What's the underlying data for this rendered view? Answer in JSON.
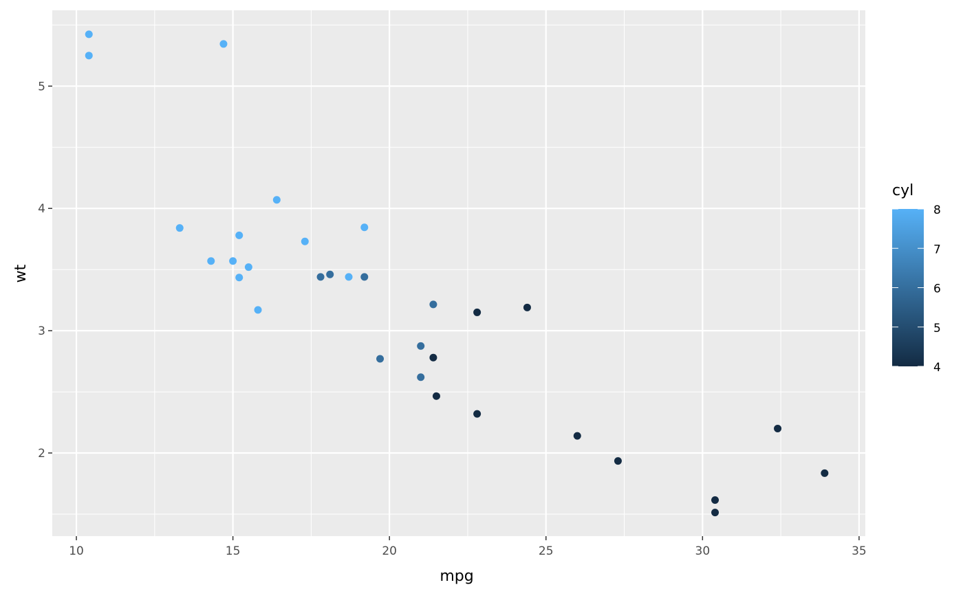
{
  "chart_data": {
    "type": "scatter",
    "title": "",
    "xlabel": "mpg",
    "ylabel": "wt",
    "xlim": [
      9.23,
      35.2
    ],
    "ylim": [
      1.32,
      5.62
    ],
    "xticks": [
      10,
      15,
      20,
      25,
      30,
      35
    ],
    "yticks": [
      2,
      3,
      4,
      5
    ],
    "grid": true,
    "legend": {
      "title": "cyl",
      "placement": "right",
      "type": "colorbar",
      "range": [
        4,
        8
      ],
      "ticks": [
        4,
        5,
        6,
        7,
        8
      ],
      "low_color": "#132B43",
      "high_color": "#56B1F7"
    },
    "points": [
      {
        "mpg": 21.0,
        "wt": 2.62,
        "cyl": 6
      },
      {
        "mpg": 21.0,
        "wt": 2.875,
        "cyl": 6
      },
      {
        "mpg": 22.8,
        "wt": 2.32,
        "cyl": 4
      },
      {
        "mpg": 21.4,
        "wt": 3.215,
        "cyl": 6
      },
      {
        "mpg": 18.7,
        "wt": 3.44,
        "cyl": 8
      },
      {
        "mpg": 18.1,
        "wt": 3.46,
        "cyl": 6
      },
      {
        "mpg": 14.3,
        "wt": 3.57,
        "cyl": 8
      },
      {
        "mpg": 24.4,
        "wt": 3.19,
        "cyl": 4
      },
      {
        "mpg": 22.8,
        "wt": 3.15,
        "cyl": 4
      },
      {
        "mpg": 19.2,
        "wt": 3.44,
        "cyl": 6
      },
      {
        "mpg": 17.8,
        "wt": 3.44,
        "cyl": 6
      },
      {
        "mpg": 16.4,
        "wt": 4.07,
        "cyl": 8
      },
      {
        "mpg": 17.3,
        "wt": 3.73,
        "cyl": 8
      },
      {
        "mpg": 15.2,
        "wt": 3.78,
        "cyl": 8
      },
      {
        "mpg": 10.4,
        "wt": 5.25,
        "cyl": 8
      },
      {
        "mpg": 10.4,
        "wt": 5.424,
        "cyl": 8
      },
      {
        "mpg": 14.7,
        "wt": 5.345,
        "cyl": 8
      },
      {
        "mpg": 32.4,
        "wt": 2.2,
        "cyl": 4
      },
      {
        "mpg": 30.4,
        "wt": 1.615,
        "cyl": 4
      },
      {
        "mpg": 33.9,
        "wt": 1.835,
        "cyl": 4
      },
      {
        "mpg": 21.5,
        "wt": 2.465,
        "cyl": 4
      },
      {
        "mpg": 15.5,
        "wt": 3.52,
        "cyl": 8
      },
      {
        "mpg": 15.2,
        "wt": 3.435,
        "cyl": 8
      },
      {
        "mpg": 13.3,
        "wt": 3.84,
        "cyl": 8
      },
      {
        "mpg": 19.2,
        "wt": 3.845,
        "cyl": 8
      },
      {
        "mpg": 27.3,
        "wt": 1.935,
        "cyl": 4
      },
      {
        "mpg": 26.0,
        "wt": 2.14,
        "cyl": 4
      },
      {
        "mpg": 30.4,
        "wt": 1.513,
        "cyl": 4
      },
      {
        "mpg": 15.8,
        "wt": 3.17,
        "cyl": 8
      },
      {
        "mpg": 19.7,
        "wt": 2.77,
        "cyl": 6
      },
      {
        "mpg": 15.0,
        "wt": 3.57,
        "cyl": 8
      },
      {
        "mpg": 21.4,
        "wt": 2.78,
        "cyl": 4
      }
    ]
  }
}
